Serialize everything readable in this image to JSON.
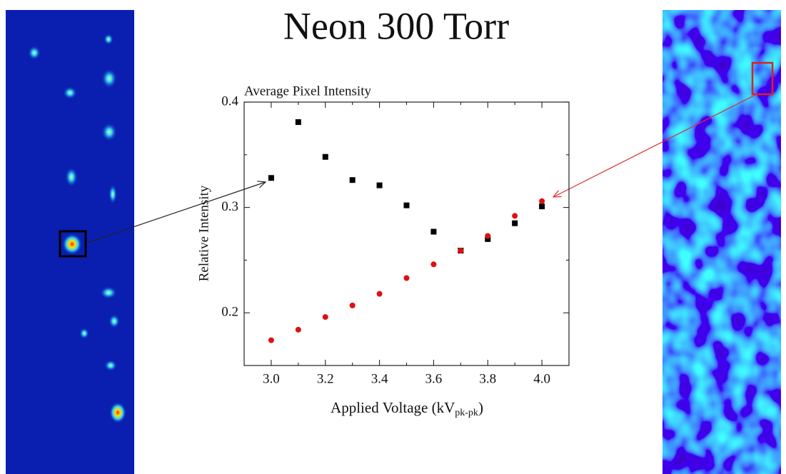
{
  "header": {
    "title": "Neon 300 Torr"
  },
  "chart_data": {
    "type": "scatter",
    "title": "Average Pixel Intensity",
    "x_label": [
      "Applied Voltage (kV",
      "pk-pk",
      ")"
    ],
    "y_label": "Relative Intensity",
    "x": [
      3.0,
      3.1,
      3.2,
      3.3,
      3.4,
      3.5,
      3.6,
      3.7,
      3.8,
      3.9,
      4.0
    ],
    "series": [
      {
        "color": "#000000",
        "marker": "square",
        "values": [
          0.328,
          0.381,
          0.348,
          0.326,
          0.321,
          0.302,
          0.277,
          0.259,
          0.27,
          0.285,
          0.301
        ]
      },
      {
        "color": "#e01010",
        "marker": "circle",
        "values": [
          0.174,
          0.184,
          0.196,
          0.207,
          0.218,
          0.233,
          0.246,
          0.259,
          0.273,
          0.292,
          0.306
        ]
      }
    ],
    "xlim": [
      2.9,
      4.1
    ],
    "ylim": [
      0.15,
      0.4
    ],
    "xticks": [
      {
        "value": 3.0,
        "label": "3.0"
      },
      {
        "value": 3.2,
        "label": "3.2"
      },
      {
        "value": 3.4,
        "label": "3.4"
      },
      {
        "value": 3.6,
        "label": "3.6"
      },
      {
        "value": 3.8,
        "label": "3.8"
      },
      {
        "value": 4.0,
        "label": "4.0"
      }
    ],
    "xticks_minor": [
      3.1,
      3.3,
      3.5,
      3.7,
      3.9
    ],
    "yticks": [
      0.2,
      0.3,
      0.4
    ],
    "yticks_minor": [
      0.25,
      0.35
    ]
  }
}
